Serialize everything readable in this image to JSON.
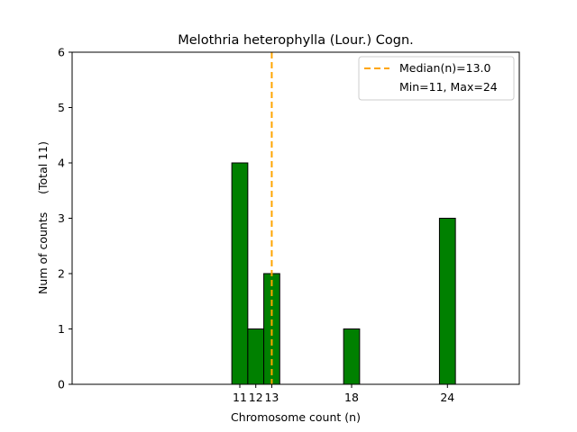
{
  "chart_data": {
    "type": "bar",
    "title": "Melothria heterophylla (Lour.) Cogn.",
    "xlabel": "Chromosome count (n)",
    "ylabel": "Num of counts     (Total 11)",
    "x": [
      11,
      12,
      13,
      18,
      24
    ],
    "values": [
      4,
      1,
      2,
      1,
      3
    ],
    "xticks": [
      "11",
      "12",
      "13",
      "18",
      "24"
    ],
    "yticks": [
      "0",
      "1",
      "2",
      "3",
      "4",
      "5",
      "6"
    ],
    "xlim": [
      0.5,
      28.5
    ],
    "ylim": [
      0,
      6
    ],
    "bar_color": "#008000",
    "bar_edge_color": "#000000",
    "median_value": 13.0,
    "median_color": "#ffa500",
    "legend": {
      "position": "top-right",
      "entries": [
        "Median(n)=13.0",
        "Min=11, Max=24"
      ]
    }
  }
}
